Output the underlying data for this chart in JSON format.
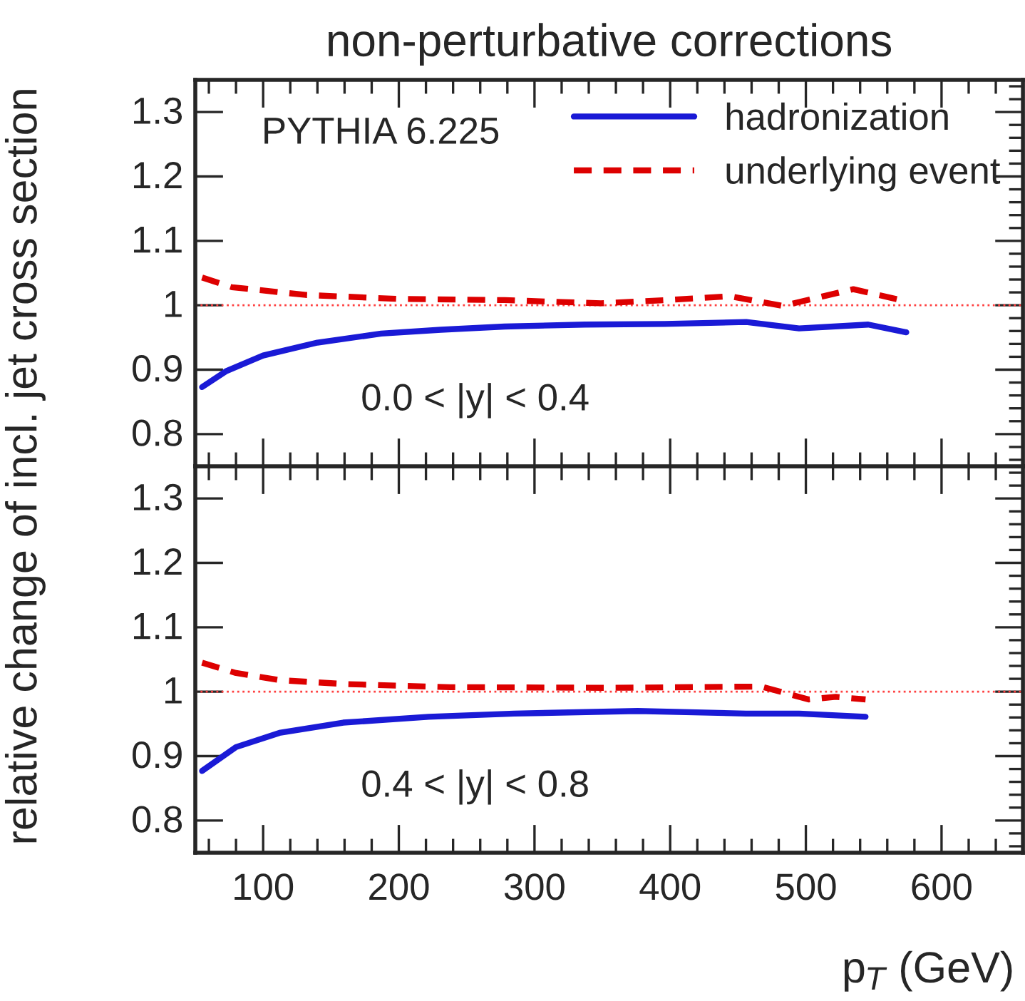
{
  "chart_data": [
    {
      "type": "line",
      "title": "non-perturbative corrections",
      "ylabel": "relative change of incl. jet cross section",
      "xlim": [
        50,
        660
      ],
      "ylim": [
        0.75,
        1.35
      ],
      "yticks": [
        0.8,
        0.9,
        1,
        1.1,
        1.2,
        1.3
      ],
      "xticks": [
        100,
        200,
        300,
        400,
        500,
        600
      ],
      "tick_labels": "y",
      "grid": false,
      "legend": "top right",
      "annotations": [
        "PYTHIA 6.225",
        "0.0 < |y| < 0.4"
      ],
      "ref_lines": [
        {
          "axis": "y",
          "value": 1,
          "color": "#ff4040",
          "line_style": "dotted"
        }
      ],
      "series": [
        {
          "name": "hadronization",
          "color": "#1a1ad6",
          "line_style": "solid",
          "x": [
            55,
            73,
            100,
            140,
            187,
            231,
            278,
            337,
            396,
            456,
            495,
            546,
            574
          ],
          "values": [
            0.873,
            0.898,
            0.922,
            0.942,
            0.956,
            0.962,
            0.967,
            0.97,
            0.971,
            0.974,
            0.964,
            0.97,
            0.958
          ]
        },
        {
          "name": "underlying event",
          "color": "#dd0000",
          "line_style": "dashed",
          "x": [
            55,
            77,
            100,
            131.5,
            198,
            278,
            349,
            396,
            444,
            483,
            535,
            574
          ],
          "values": [
            1.043,
            1.028,
            1.023,
            1.016,
            1.01,
            1.008,
            1.003,
            1.008,
            1.014,
            0.999,
            1.025,
            1.006
          ]
        }
      ]
    },
    {
      "type": "line",
      "xlabel": "p$_{T}$ (GeV)",
      "xlim": [
        50,
        660
      ],
      "ylim": [
        0.75,
        1.35
      ],
      "yticks": [
        0.8,
        0.9,
        1,
        1.1,
        1.2,
        1.3
      ],
      "xticks": [
        100,
        200,
        300,
        400,
        500,
        600
      ],
      "grid": false,
      "annotations": [
        "0.4 < |y| < 0.8"
      ],
      "ref_lines": [
        {
          "axis": "y",
          "value": 1,
          "color": "#ff4040",
          "line_style": "dotted"
        }
      ],
      "series": [
        {
          "color": "#1a1ad6",
          "line_style": "solid",
          "x": [
            55,
            80,
            112,
            159,
            222,
            285,
            376,
            456,
            495,
            544
          ],
          "values": [
            0.877,
            0.914,
            0.936,
            0.952,
            0.961,
            0.966,
            0.97,
            0.966,
            0.966,
            0.961
          ]
        },
        {
          "color": "#dd0000",
          "line_style": "dashed",
          "x": [
            55,
            80,
            112,
            159,
            238,
            356,
            467,
            502,
            522,
            544
          ],
          "values": [
            1.045,
            1.029,
            1.018,
            1.012,
            1.007,
            1.006,
            1.008,
            0.988,
            0.992,
            0.988
          ]
        }
      ]
    }
  ]
}
